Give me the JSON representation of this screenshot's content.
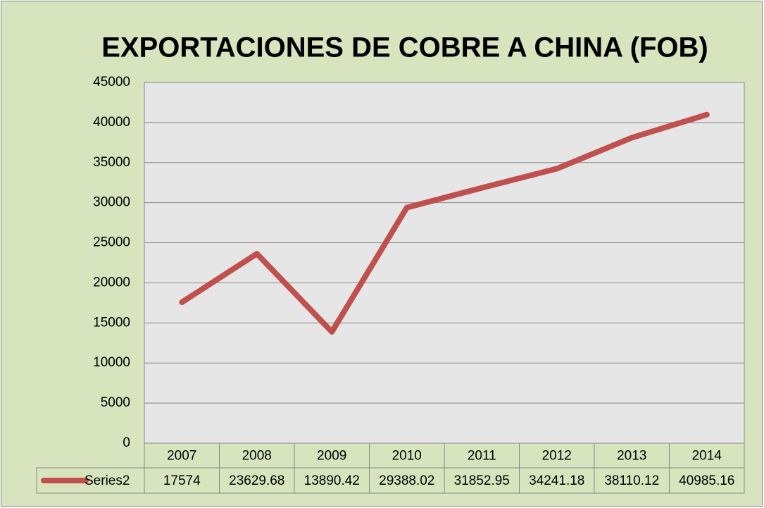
{
  "chart_data": {
    "type": "line",
    "title": "EXPORTACIONES DE COBRE A CHINA (FOB)",
    "categories": [
      "2007",
      "2008",
      "2009",
      "2010",
      "2011",
      "2012",
      "2013",
      "2014"
    ],
    "series": [
      {
        "name": "Series2",
        "color": "#c0504d",
        "values": [
          17574,
          23629.68,
          13890.42,
          29388.02,
          31852.95,
          34241.18,
          38110.12,
          40985.16
        ]
      }
    ],
    "ylim": [
      0,
      45000
    ],
    "yticks": [
      0,
      5000,
      10000,
      15000,
      20000,
      25000,
      30000,
      35000,
      40000,
      45000
    ],
    "grid": true
  }
}
